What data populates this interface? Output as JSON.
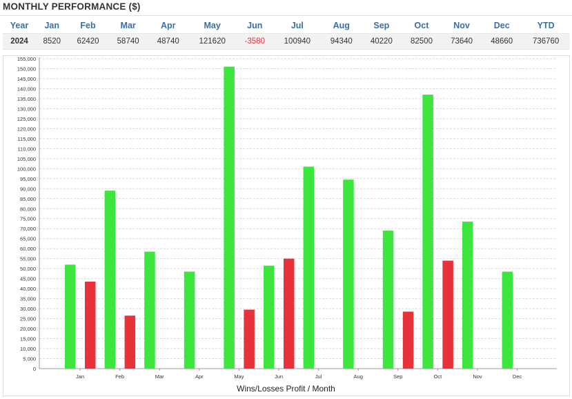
{
  "header": {
    "title": "MONTHLY PERFORMANCE ($)"
  },
  "table": {
    "columns": [
      "Year",
      "Jan",
      "Feb",
      "Mar",
      "Apr",
      "May",
      "Jun",
      "Jul",
      "Aug",
      "Sep",
      "Oct",
      "Nov",
      "Dec",
      "YTD"
    ],
    "rows": [
      [
        "2024",
        "8520",
        "62420",
        "58740",
        "48740",
        "121620",
        "-3580",
        "100940",
        "94340",
        "40220",
        "82500",
        "73640",
        "48660",
        "736760"
      ]
    ]
  },
  "colors": {
    "win": "#3de63d",
    "loss": "#e8323a",
    "negative_text": "#e8323a",
    "header_text": "#3a6ea5"
  },
  "chart_data": {
    "type": "bar",
    "title": "",
    "xlabel": "Wins/Losses Profit / Month",
    "ylabel": "",
    "ylim": [
      0,
      155000
    ],
    "ytick_step": 5000,
    "grid": true,
    "categories": [
      "Jan",
      "Feb",
      "Mar",
      "Apr",
      "May",
      "Jun",
      "Jul",
      "Aug",
      "Sep",
      "Oct",
      "Nov",
      "Dec"
    ],
    "series": [
      {
        "values": [
          52000,
          89000,
          58500,
          48500,
          151000,
          51500,
          101000,
          94500,
          69000,
          137000,
          73500,
          48500
        ]
      },
      {
        "values": [
          43500,
          26500,
          0,
          0,
          29500,
          55000,
          0,
          0,
          28500,
          54000,
          0,
          0
        ]
      }
    ]
  }
}
